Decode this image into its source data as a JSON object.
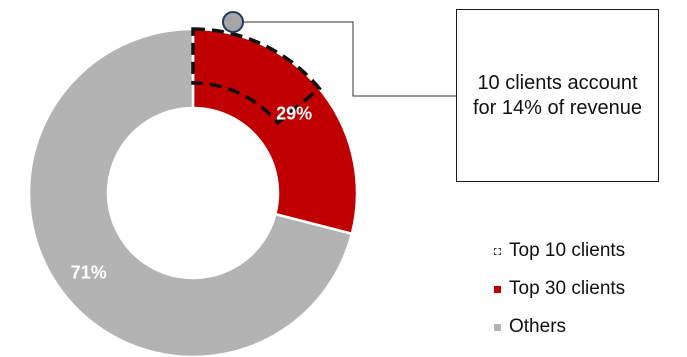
{
  "colors": {
    "top30": "#c00000",
    "others": "#b3b3b3",
    "marker_fill": "#a6a6a6",
    "marker_stroke": "#1f3864",
    "outline": "#111111"
  },
  "chart_data": {
    "type": "pie",
    "variant": "donut",
    "slices": [
      {
        "name": "Top 30 clients",
        "value": 29,
        "label": "29%",
        "color": "#c00000"
      },
      {
        "name": "Others",
        "value": 71,
        "label": "71%",
        "color": "#b3b3b3"
      }
    ],
    "highlight": {
      "name": "Top 10 clients",
      "value": 14,
      "style": "dashed-outline",
      "within": "Top 30 clients"
    },
    "start_angle_deg": 0,
    "direction": "clockwise",
    "legend": {
      "position": "right",
      "entries": [
        {
          "label": "Top 10 clients",
          "marker": "dashed-outline"
        },
        {
          "label": "Top 30 clients",
          "marker": "solid",
          "color": "#c00000"
        },
        {
          "label": "Others",
          "marker": "solid",
          "color": "#b3b3b3"
        }
      ]
    },
    "annotation": {
      "text": "10 clients account for 14% of revenue"
    }
  }
}
